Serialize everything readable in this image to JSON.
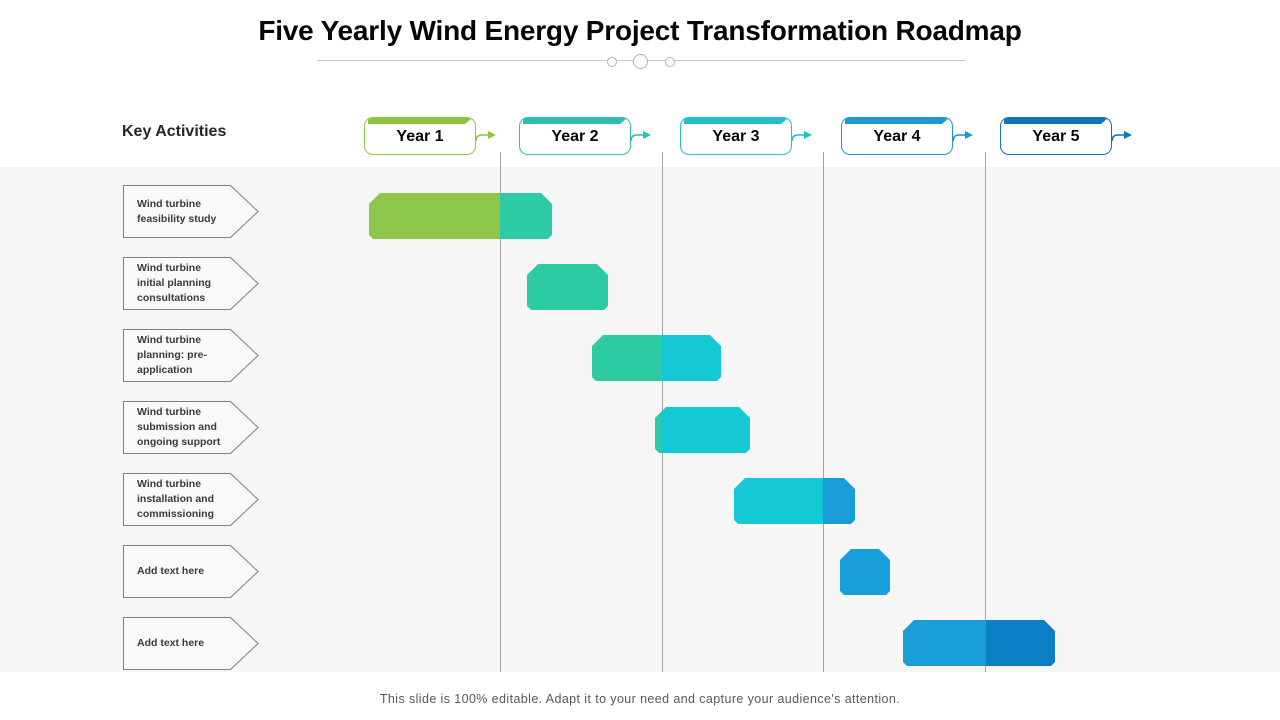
{
  "slide": {
    "title": "Five Yearly Wind Energy Project Transformation Roadmap",
    "key_activities_label": "Key Activities",
    "caption": "This slide is 100% editable. Adapt it to your need and capture your audience's attention."
  },
  "years": [
    {
      "label": "Year 1",
      "color": "#8CC63F"
    },
    {
      "label": "Year 2",
      "color": "#2EBFB2"
    },
    {
      "label": "Year 3",
      "color": "#22BECC"
    },
    {
      "label": "Year 4",
      "color": "#1E96D2"
    },
    {
      "label": "Year 5",
      "color": "#1473B8"
    }
  ],
  "palette": {
    "green": "#8DC74C",
    "teal": "#2CCBA4",
    "cyan": "#14C9D3",
    "blue": "#1A9EDA",
    "darkblue": "#0C7EC3"
  },
  "chart_data": {
    "type": "gantt",
    "unit": "years",
    "x_categories": [
      "Year 1",
      "Year 2",
      "Year 3",
      "Year 4",
      "Year 5"
    ],
    "x_range": [
      0,
      5
    ],
    "grid": "vertical-lines-between-years",
    "activities": [
      {
        "name": "Wind turbine feasibility study",
        "segments": [
          {
            "start": 0.19,
            "end": 1.0,
            "color": "green"
          },
          {
            "start": 1.0,
            "end": 1.32,
            "color": "teal"
          }
        ]
      },
      {
        "name": "Wind turbine initial planning consultations",
        "segments": [
          {
            "start": 1.17,
            "end": 1.67,
            "color": "teal"
          }
        ]
      },
      {
        "name": "Wind turbine planning:  pre-application",
        "segments": [
          {
            "start": 1.57,
            "end": 2.0,
            "color": "teal"
          },
          {
            "start": 2.0,
            "end": 2.37,
            "color": "cyan"
          }
        ]
      },
      {
        "name": "Wind turbine submission  and ongoing support",
        "segments": [
          {
            "start": 1.96,
            "end": 2.0,
            "color": "teal"
          },
          {
            "start": 2.0,
            "end": 2.55,
            "color": "cyan"
          }
        ]
      },
      {
        "name": "Wind turbine installation and commissioning",
        "segments": [
          {
            "start": 2.45,
            "end": 3.0,
            "color": "cyan"
          },
          {
            "start": 3.0,
            "end": 3.2,
            "color": "blue"
          }
        ]
      },
      {
        "name": "Add text here",
        "segments": [
          {
            "start": 3.1,
            "end": 3.41,
            "color": "blue"
          }
        ]
      },
      {
        "name": "Add text here",
        "segments": [
          {
            "start": 3.49,
            "end": 4.0,
            "color": "blue"
          },
          {
            "start": 4.0,
            "end": 4.43,
            "color": "darkblue"
          }
        ]
      }
    ]
  }
}
